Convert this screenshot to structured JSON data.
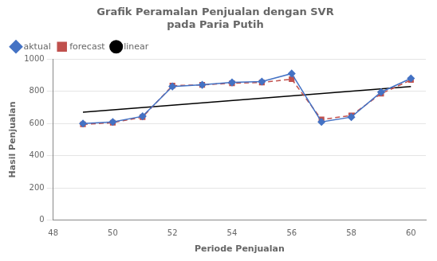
{
  "chart_data": {
    "type": "line",
    "title": "Grafik Peramalan Penjualan dengan SVR\npada Paria Putih",
    "x_label": "Periode Penjualan",
    "y_label": "Hasil Penjualan",
    "xlim": [
      48,
      60.5
    ],
    "ylim": [
      0,
      1000
    ],
    "xticks": [
      48,
      50,
      52,
      54,
      56,
      58,
      60
    ],
    "yticks": [
      0,
      200,
      400,
      600,
      800,
      1000
    ],
    "grid": "y",
    "legend": "upper left",
    "series": [
      {
        "name": "aktual",
        "color": "#4472c4",
        "marker": "diamond",
        "line_style": "solid",
        "x": [
          49,
          50,
          51,
          52,
          53,
          54,
          55,
          56,
          57,
          58,
          59,
          60
        ],
        "values": [
          600,
          610,
          645,
          830,
          840,
          855,
          860,
          910,
          610,
          640,
          795,
          880
        ]
      },
      {
        "name": "forecast",
        "color": "#c0504d",
        "marker": "square",
        "line_style": "dashed",
        "x": [
          49,
          50,
          51,
          52,
          53,
          54,
          55,
          56,
          57,
          58,
          59,
          60
        ],
        "values": [
          595,
          605,
          640,
          835,
          840,
          850,
          855,
          875,
          625,
          650,
          785,
          870
        ]
      },
      {
        "name": "linear",
        "color": "#000000",
        "marker": "none",
        "line_style": "solid",
        "x": [
          49,
          60
        ],
        "values": [
          670,
          830
        ]
      }
    ]
  }
}
